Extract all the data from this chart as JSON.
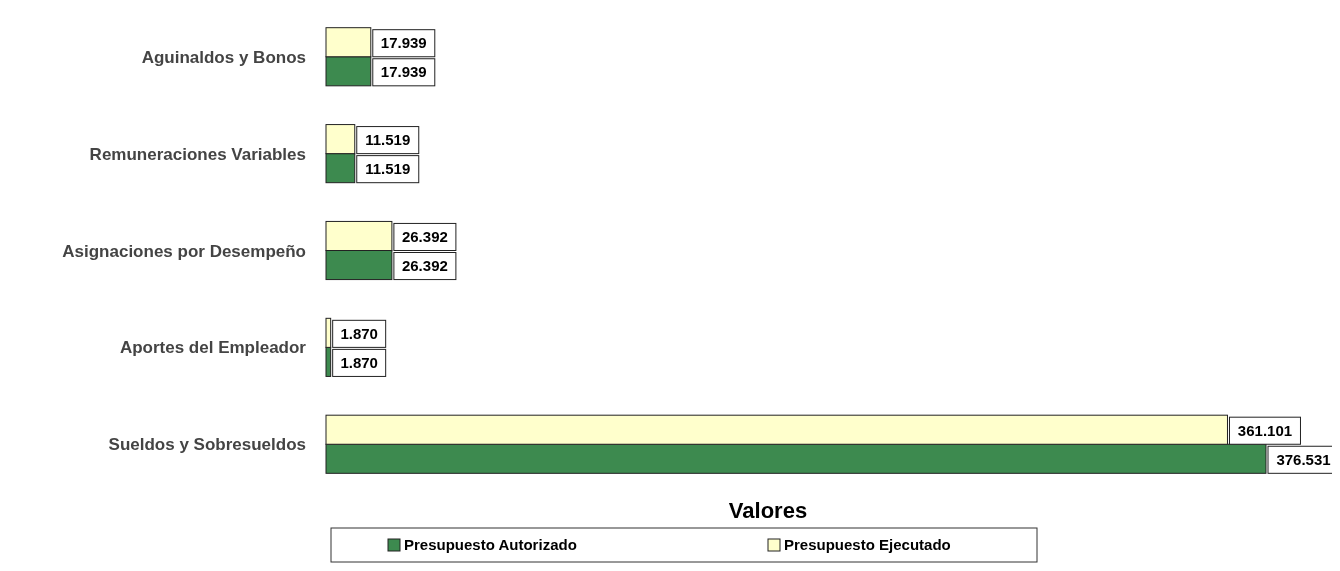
{
  "chart_data": {
    "type": "bar",
    "orientation": "horizontal",
    "xlabel": "Valores",
    "legend": "bottom",
    "categories": [
      "Aguinaldos y Bonos",
      "Remuneraciones Variables",
      "Asignaciones por Desempeño",
      "Aportes del Empleador",
      "Sueldos y Sobresueldos"
    ],
    "series": [
      {
        "name": "Presupuesto Autorizado",
        "color": "#3d8a4f",
        "values": [
          17939,
          11519,
          26392,
          1870,
          376531
        ],
        "value_labels": [
          "17.939",
          "11.519",
          "26.392",
          "1.870",
          "376.531"
        ]
      },
      {
        "name": "Presupuesto Ejecutado",
        "color": "#ffffcc",
        "values": [
          17939,
          11519,
          26392,
          1870,
          361101
        ],
        "value_labels": [
          "17.939",
          "11.519",
          "26.392",
          "1.870",
          "361.101"
        ]
      }
    ]
  }
}
